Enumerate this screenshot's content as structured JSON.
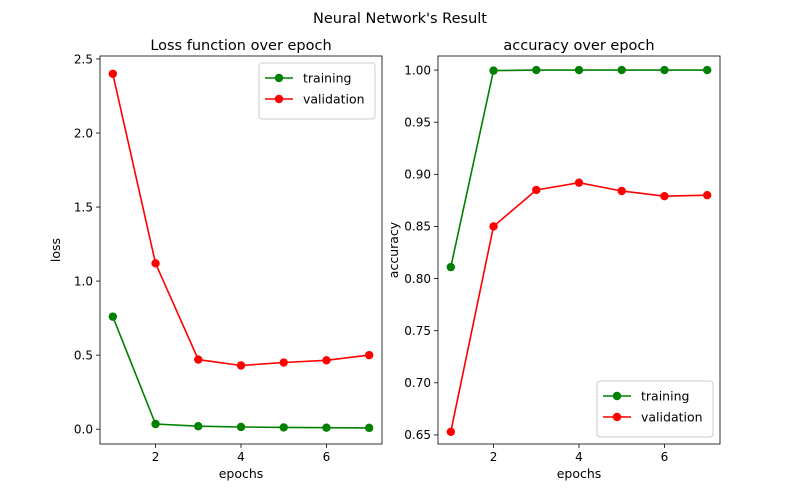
{
  "figure": {
    "suptitle": "Neural Network's Result"
  },
  "chart_data": [
    {
      "type": "line",
      "title": "Loss function over epoch",
      "xlabel": "epochs",
      "ylabel": "loss",
      "x": [
        1,
        2,
        3,
        4,
        5,
        6,
        7
      ],
      "xlim": [
        0.7,
        7.3
      ],
      "ylim": [
        -0.1,
        2.52
      ],
      "xticks": [
        2,
        4,
        6
      ],
      "xtick_labels": [
        "2",
        "4",
        "6"
      ],
      "yticks": [
        0.0,
        0.5,
        1.0,
        1.5,
        2.0,
        2.5
      ],
      "ytick_labels": [
        "0.0",
        "0.5",
        "1.0",
        "1.5",
        "2.0",
        "2.5"
      ],
      "grid": false,
      "legend_position": "top-right",
      "series": [
        {
          "name": "training",
          "color": "#008000",
          "values": [
            0.76,
            0.035,
            0.02,
            0.015,
            0.012,
            0.01,
            0.009
          ]
        },
        {
          "name": "validation",
          "color": "#ff0000",
          "values": [
            2.4,
            1.12,
            0.47,
            0.43,
            0.45,
            0.465,
            0.5
          ]
        }
      ]
    },
    {
      "type": "line",
      "title": "accuracy over epoch",
      "xlabel": "epochs",
      "ylabel": "accuracy",
      "x": [
        1,
        2,
        3,
        4,
        5,
        6,
        7
      ],
      "xlim": [
        0.7,
        7.3
      ],
      "ylim": [
        0.6413,
        1.0135
      ],
      "xticks": [
        2,
        4,
        6
      ],
      "xtick_labels": [
        "2",
        "4",
        "6"
      ],
      "yticks": [
        0.65,
        0.7,
        0.75,
        0.8,
        0.85,
        0.9,
        0.95,
        1.0
      ],
      "ytick_labels": [
        "0.65",
        "0.70",
        "0.75",
        "0.80",
        "0.85",
        "0.90",
        "0.95",
        "1.00"
      ],
      "grid": false,
      "legend_position": "bottom-right",
      "series": [
        {
          "name": "training",
          "color": "#008000",
          "values": [
            0.811,
            0.9995,
            1.0,
            1.0,
            1.0,
            1.0,
            1.0
          ]
        },
        {
          "name": "validation",
          "color": "#ff0000",
          "values": [
            0.653,
            0.85,
            0.885,
            0.892,
            0.884,
            0.879,
            0.88
          ]
        }
      ]
    }
  ]
}
